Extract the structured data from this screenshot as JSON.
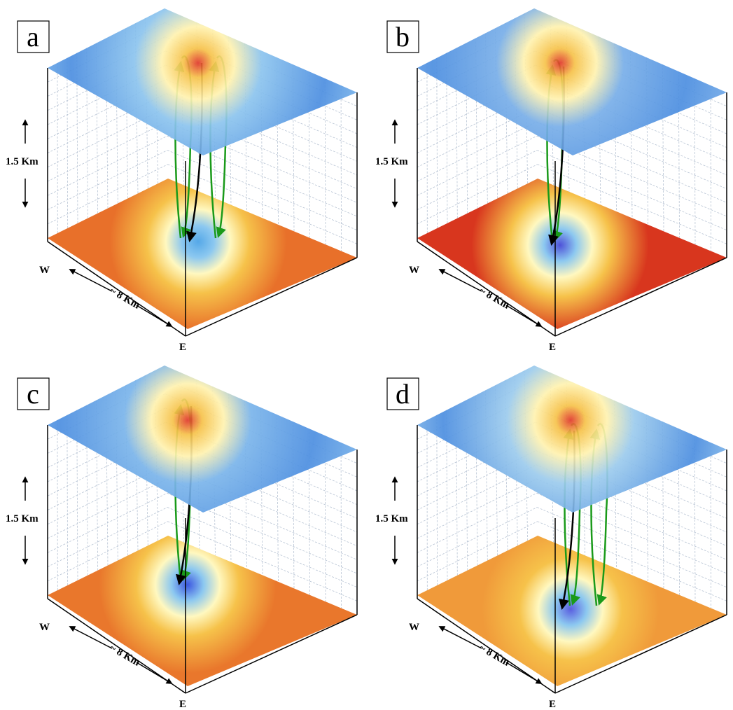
{
  "panels": [
    {
      "label": "a",
      "height_label": "1.5 Km",
      "width_label": "~ 8 Km",
      "west": "W",
      "east": "E"
    },
    {
      "label": "b",
      "height_label": "1.5 Km",
      "width_label": "~ 8 Km",
      "west": "W",
      "east": "E"
    },
    {
      "label": "c",
      "height_label": "1.5 Km",
      "width_label": "~ 8 Km",
      "west": "W",
      "east": "E"
    },
    {
      "label": "d",
      "height_label": "1.5 Km",
      "width_label": "~ 8 Km",
      "west": "W",
      "east": "E"
    }
  ]
}
